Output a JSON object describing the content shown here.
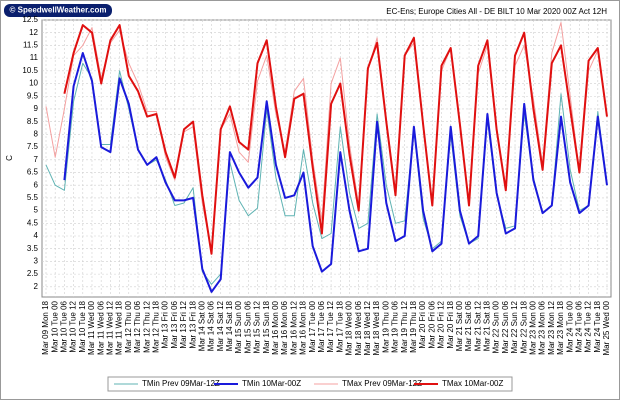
{
  "brand": "© SpeedwellWeather.com",
  "chart_data": {
    "type": "line",
    "title": "EC-Ens; Europe Cities All - DE BILT 10 Mar 2020 00Z Act 12H",
    "y_label": "C",
    "ylim": [
      1.6,
      12.5
    ],
    "yticks": [
      2,
      2.5,
      3,
      3.5,
      4,
      4.5,
      5,
      5.5,
      6,
      6.5,
      7,
      7.5,
      8,
      8.5,
      9,
      9.5,
      10,
      10.5,
      11,
      11.5,
      12,
      12.5
    ],
    "grid": true,
    "legend": "bottom",
    "categories": [
      "Mar 09 Mon 18",
      "Mar 10 Tue 00",
      "Mar 10 Tue 06",
      "Mar 10 Tue 12",
      "Mar 10 Tue 18",
      "Mar 11 Wed 00",
      "Mar 11 Wed 06",
      "Mar 11 Wed 12",
      "Mar 11 Wed 18",
      "Mar 12 Thu 00",
      "Mar 12 Thu 06",
      "Mar 12 Thu 12",
      "Mar 12 Thu 18",
      "Mar 13 Fri 00",
      "Mar 13 Fri 06",
      "Mar 13 Fri 12",
      "Mar 13 Fri 18",
      "Mar 14 Sat 00",
      "Mar 14 Sat 06",
      "Mar 14 Sat 12",
      "Mar 14 Sat 18",
      "Mar 15 Sun 00",
      "Mar 15 Sun 06",
      "Mar 15 Sun 12",
      "Mar 15 Sun 18",
      "Mar 16 Mon 00",
      "Mar 16 Mon 06",
      "Mar 16 Mon 12",
      "Mar 16 Mon 18",
      "Mar 17 Tue 00",
      "Mar 17 Tue 06",
      "Mar 17 Tue 12",
      "Mar 17 Tue 18",
      "Mar 18 Wed 00",
      "Mar 18 Wed 06",
      "Mar 18 Wed 12",
      "Mar 18 Wed 18",
      "Mar 19 Thu 00",
      "Mar 19 Thu 06",
      "Mar 19 Thu 12",
      "Mar 19 Thu 18",
      "Mar 20 Fri 00",
      "Mar 20 Fri 06",
      "Mar 20 Fri 12",
      "Mar 20 Fri 18",
      "Mar 21 Sat 00",
      "Mar 21 Sat 06",
      "Mar 21 Sat 12",
      "Mar 21 Sat 18",
      "Mar 22 Sun 00",
      "Mar 22 Sun 06",
      "Mar 22 Sun 12",
      "Mar 22 Sun 18",
      "Mar 23 Mon 00",
      "Mar 23 Mon 06",
      "Mar 23 Mon 12",
      "Mar 23 Mon 18",
      "Mar 24 Tue 00",
      "Mar 24 Tue 06",
      "Mar 24 Tue 12",
      "Mar 24 Tue 18",
      "Mar 25 Wed 00"
    ],
    "series": [
      {
        "name": "TMin Prev 09Mar-12Z",
        "color": "#5fb3b3",
        "width": 1,
        "values": [
          6.8,
          6.0,
          5.8,
          9.3,
          10.8,
          10.2,
          7.6,
          7.6,
          10.5,
          9.0,
          7.4,
          6.8,
          7.0,
          6.2,
          5.2,
          5.3,
          5.9,
          2.6,
          2.1,
          2.5,
          6.9,
          5.4,
          4.8,
          5.1,
          9.0,
          6.3,
          4.8,
          4.8,
          7.4,
          5.3,
          3.9,
          4.1,
          8.3,
          5.7,
          4.3,
          4.5,
          8.8,
          6.0,
          4.5,
          4.6,
          8.2,
          4.7,
          3.5,
          3.8,
          8.0,
          4.8,
          3.7,
          3.9,
          8.6,
          5.6,
          4.3,
          4.4,
          8.8,
          6.3,
          4.9,
          5.2,
          9.6,
          6.6,
          5.0,
          5.2,
          8.9,
          6.1
        ]
      },
      {
        "name": "TMin 10Mar-00Z",
        "color": "#1a1adb",
        "width": 2,
        "values": [
          null,
          null,
          6.2,
          9.9,
          11.2,
          10.1,
          7.5,
          7.3,
          10.2,
          9.2,
          7.4,
          6.8,
          7.1,
          6.1,
          5.4,
          5.4,
          5.5,
          2.7,
          1.8,
          2.3,
          7.3,
          6.5,
          5.9,
          6.3,
          9.3,
          6.8,
          5.5,
          5.6,
          6.5,
          3.6,
          2.6,
          2.9,
          7.3,
          5.0,
          3.4,
          3.5,
          8.5,
          5.3,
          3.8,
          4.0,
          8.3,
          5.0,
          3.4,
          3.7,
          8.3,
          5.0,
          3.7,
          4.0,
          8.8,
          5.7,
          4.1,
          4.3,
          9.2,
          6.2,
          4.9,
          5.2,
          8.7,
          6.1,
          4.9,
          5.2,
          8.7,
          6.0
        ]
      },
      {
        "name": "TMax Prev 09Mar-12Z",
        "color": "#f4a0a0",
        "width": 1,
        "values": [
          9.1,
          7.1,
          9.0,
          11.1,
          11.5,
          12.2,
          10.2,
          11.6,
          12.1,
          10.8,
          10.0,
          8.9,
          8.9,
          7.1,
          6.2,
          8.1,
          8.3,
          5.3,
          3.4,
          8.2,
          8.8,
          7.3,
          6.9,
          10.1,
          11.1,
          8.8,
          7.3,
          9.7,
          10.2,
          7.0,
          4.6,
          10.0,
          11.0,
          7.6,
          5.2,
          10.5,
          11.8,
          8.6,
          5.8,
          11.1,
          11.6,
          8.3,
          5.3,
          10.5,
          11.4,
          8.3,
          5.3,
          10.4,
          11.5,
          8.1,
          5.9,
          10.7,
          11.5,
          9.4,
          6.8,
          11.2,
          12.4,
          9.5,
          6.5,
          10.5,
          11.3,
          8.7
        ]
      },
      {
        "name": "TMax 10Mar-00Z",
        "color": "#e01010",
        "width": 2,
        "values": [
          null,
          null,
          9.6,
          11.2,
          12.3,
          12.0,
          10.0,
          11.7,
          12.3,
          10.3,
          9.7,
          8.7,
          8.8,
          7.3,
          6.3,
          8.2,
          8.5,
          5.6,
          3.3,
          8.2,
          9.1,
          7.7,
          7.4,
          10.8,
          11.7,
          9.1,
          7.1,
          9.4,
          9.6,
          6.7,
          4.1,
          9.2,
          10.0,
          7.2,
          5.0,
          10.6,
          11.6,
          8.5,
          5.6,
          11.1,
          11.8,
          8.4,
          5.2,
          10.7,
          11.4,
          8.4,
          5.2,
          10.7,
          11.7,
          8.2,
          5.8,
          11.1,
          12.0,
          9.0,
          6.6,
          10.8,
          11.5,
          9.0,
          6.5,
          10.9,
          11.4,
          8.7
        ]
      }
    ]
  }
}
